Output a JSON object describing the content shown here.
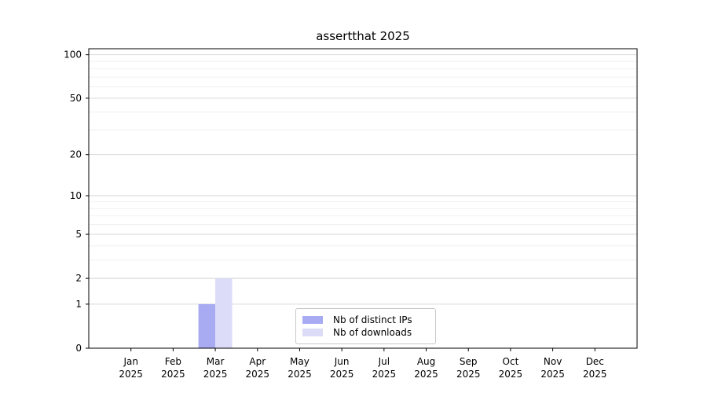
{
  "chart_data": {
    "type": "bar",
    "title": "assertthat 2025",
    "categories": [
      "Jan",
      "Feb",
      "Mar",
      "Apr",
      "May",
      "Jun",
      "Jul",
      "Aug",
      "Sep",
      "Oct",
      "Nov",
      "Dec"
    ],
    "x_tick_second_line": "2025",
    "series": [
      {
        "name": "Nb of distinct IPs",
        "color": "#a8abf2",
        "values": [
          0,
          0,
          1,
          0,
          0,
          0,
          0,
          0,
          0,
          0,
          0,
          0
        ]
      },
      {
        "name": "Nb of downloads",
        "color": "#dcdcf8",
        "values": [
          0,
          0,
          2,
          0,
          0,
          0,
          0,
          0,
          0,
          0,
          0,
          0
        ]
      }
    ],
    "y_scale": "log1p",
    "ylim": [
      0,
      110
    ],
    "y_major_ticks": [
      0,
      1,
      2,
      5,
      10,
      20,
      50,
      100
    ],
    "y_minor_ticks": [
      3,
      4,
      6,
      7,
      8,
      9,
      30,
      40,
      60,
      70,
      80,
      90
    ],
    "xlabel": "",
    "ylabel": "",
    "grid": "horizontal",
    "legend_position": "lower center"
  }
}
